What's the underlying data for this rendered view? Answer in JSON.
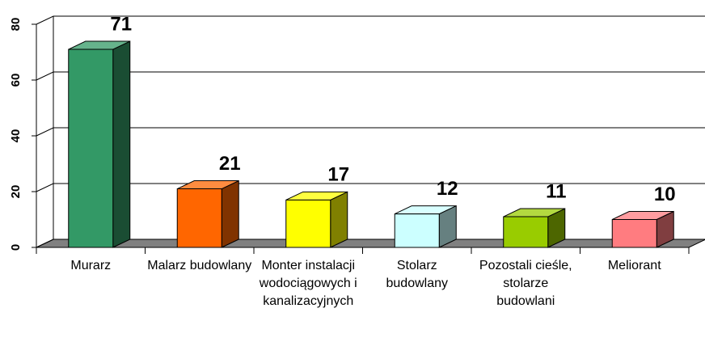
{
  "chart_data": {
    "type": "bar3d",
    "categories": [
      "Murarz",
      "Malarz budowlany",
      "Monter instalacji wodociągowych i kanalizacyjnych",
      "Stolarz budowlany",
      "Pozostali cieśle, stolarze budowlani",
      "Meliorant"
    ],
    "values": [
      71,
      21,
      17,
      12,
      11,
      10
    ],
    "colors": [
      "#339966",
      "#ff6600",
      "#ffff00",
      "#ccffff",
      "#99cc00",
      "#ff7c80"
    ],
    "ylim": [
      0,
      80
    ],
    "yticks": [
      0,
      20,
      40,
      60,
      80
    ],
    "grid": true
  }
}
